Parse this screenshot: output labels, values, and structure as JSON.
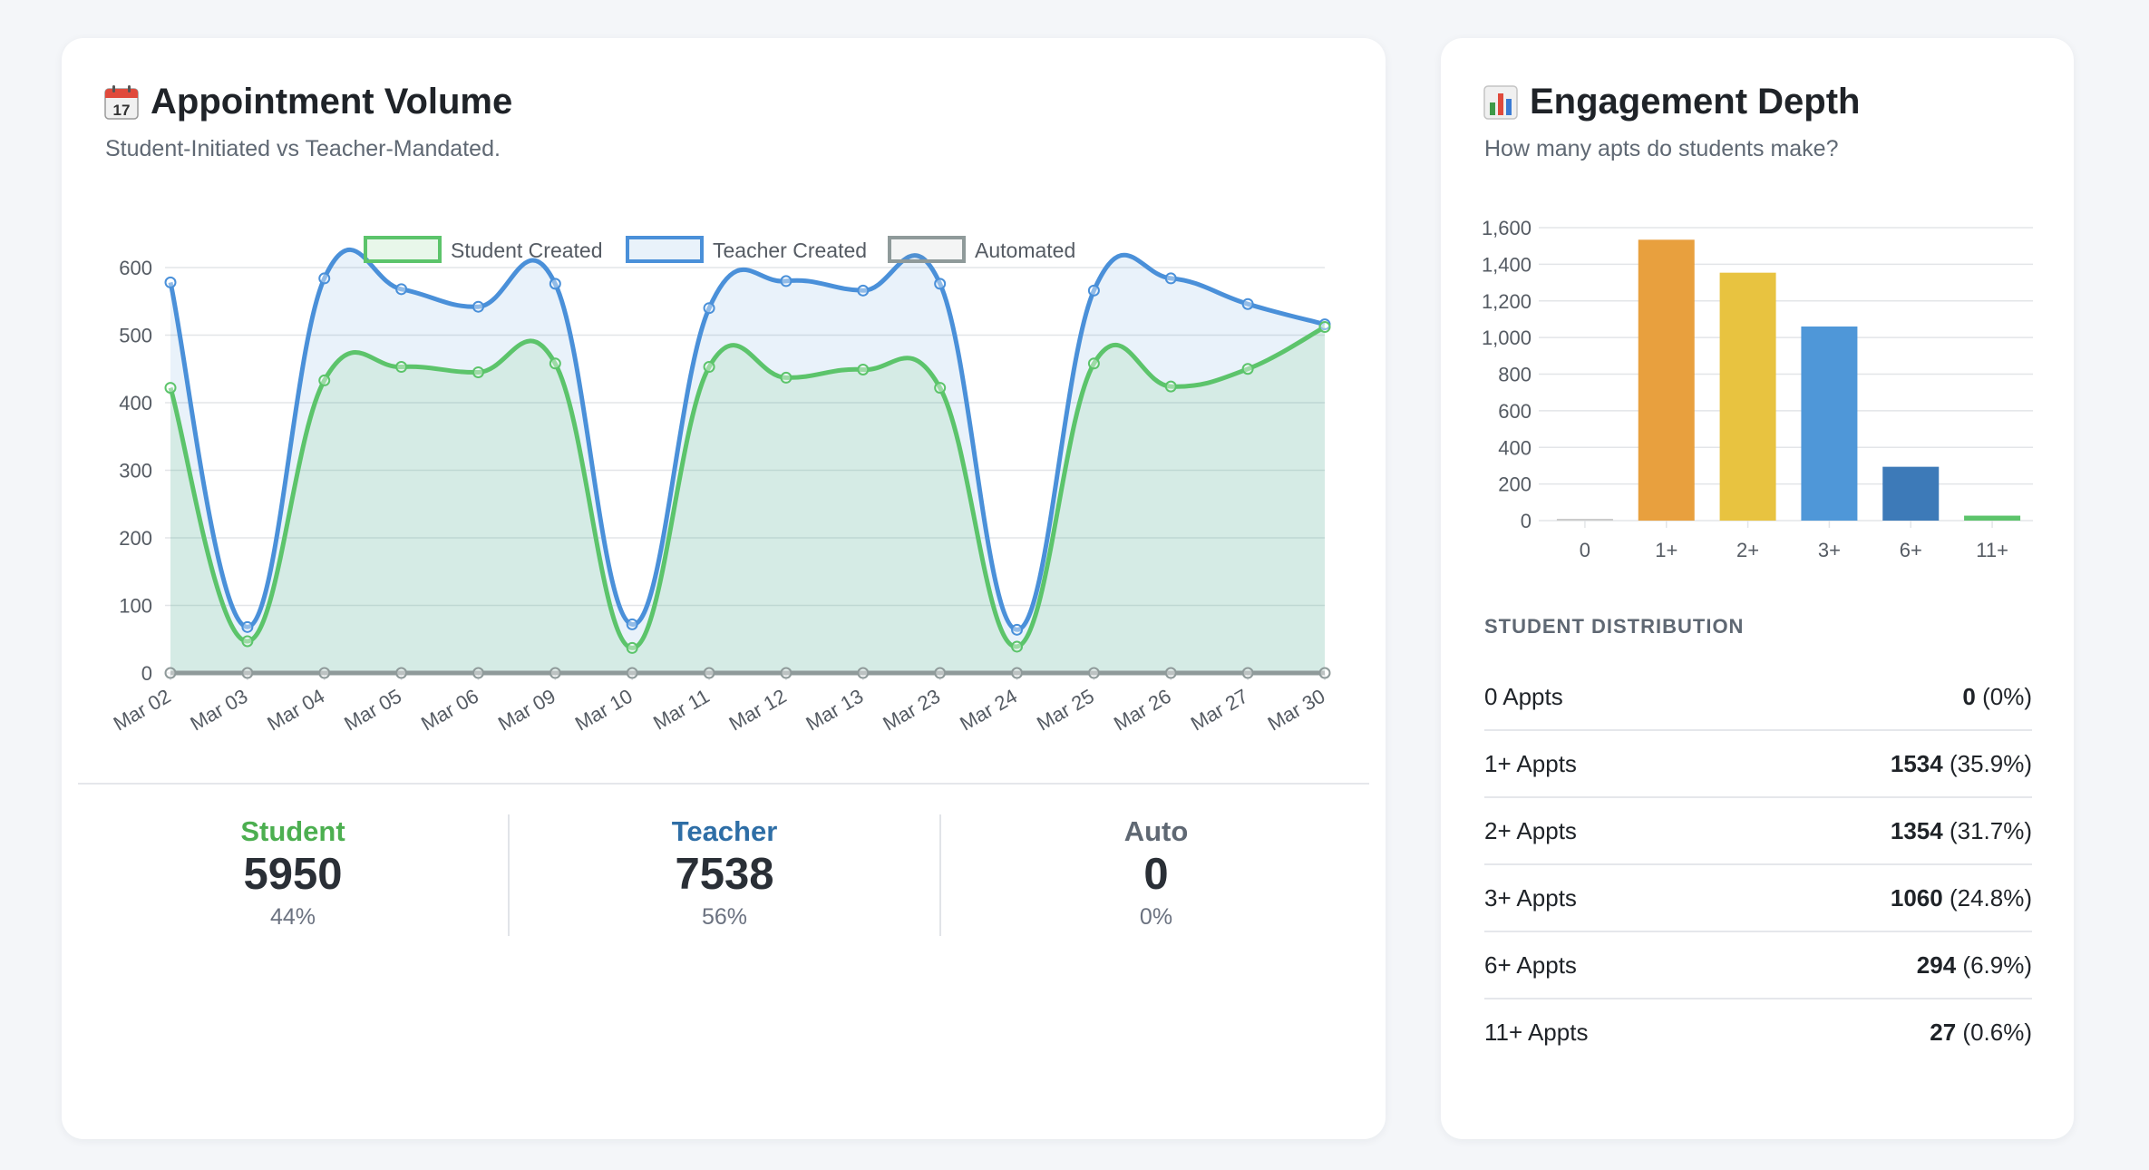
{
  "volume": {
    "title": "Appointment Volume",
    "subtitle": "Student-Initiated vs Teacher-Mandated.",
    "icon": "calendar-icon",
    "stats": [
      {
        "label": "Student",
        "value": "5950",
        "pct": "44%",
        "color": "#4caf50"
      },
      {
        "label": "Teacher",
        "value": "7538",
        "pct": "56%",
        "color": "#2e6ea6"
      },
      {
        "label": "Auto",
        "value": "0",
        "pct": "0%",
        "color": "#5f6873"
      }
    ]
  },
  "depth": {
    "title": "Engagement Depth",
    "subtitle": "How many apts do students make?",
    "icon": "bar-chart-icon",
    "dist_title": "STUDENT DISTRIBUTION",
    "rows": [
      {
        "label": "0 Appts",
        "count": "0",
        "pct": "(0%)"
      },
      {
        "label": "1+ Appts",
        "count": "1534",
        "pct": "(35.9%)"
      },
      {
        "label": "2+ Appts",
        "count": "1354",
        "pct": "(31.7%)"
      },
      {
        "label": "3+ Appts",
        "count": "1060",
        "pct": "(24.8%)"
      },
      {
        "label": "6+ Appts",
        "count": "294",
        "pct": "(6.9%)"
      },
      {
        "label": "11+ Appts",
        "count": "27",
        "pct": "(0.6%)"
      }
    ]
  },
  "chart_data": [
    {
      "type": "line",
      "x": [
        "Mar 02",
        "Mar 03",
        "Mar 04",
        "Mar 05",
        "Mar 06",
        "Mar 09",
        "Mar 10",
        "Mar 11",
        "Mar 12",
        "Mar 13",
        "Mar 23",
        "Mar 24",
        "Mar 25",
        "Mar 26",
        "Mar 27",
        "Mar 30"
      ],
      "series": [
        {
          "name": "Student Created",
          "color": "#5cc46b",
          "fill": "rgba(92,196,107,0.14)",
          "values": [
            422,
            47,
            433,
            453,
            445,
            458,
            37,
            453,
            437,
            449,
            422,
            39,
            458,
            424,
            450,
            512
          ]
        },
        {
          "name": "Teacher Created",
          "color": "#4a90d9",
          "fill": "rgba(74,144,217,0.12)",
          "values": [
            578,
            68,
            584,
            568,
            542,
            576,
            72,
            540,
            580,
            566,
            576,
            64,
            566,
            584,
            546,
            516
          ]
        },
        {
          "name": "Automated",
          "color": "#8f9a9a",
          "fill": "rgba(143,154,154,0.10)",
          "values": [
            0,
            0,
            0,
            0,
            0,
            0,
            0,
            0,
            0,
            0,
            0,
            0,
            0,
            0,
            0,
            0
          ]
        }
      ],
      "yticks": [
        0,
        100,
        200,
        300,
        400,
        500,
        600
      ],
      "ylim": [
        0,
        600
      ],
      "legend": "top",
      "grid": true
    },
    {
      "type": "bar",
      "categories": [
        "0",
        "1+",
        "2+",
        "3+",
        "6+",
        "11+"
      ],
      "values": [
        0,
        1534,
        1354,
        1060,
        294,
        27
      ],
      "colors": [
        "#cccccc",
        "#e8a03e",
        "#e8c340",
        "#4f97d8",
        "#3d7ab8",
        "#5cc46b"
      ],
      "yticks": [
        "0",
        "200",
        "400",
        "600",
        "800",
        "1,000",
        "1,200",
        "1,400",
        "1,600"
      ],
      "ylim": [
        0,
        1600
      ],
      "grid": true
    }
  ]
}
